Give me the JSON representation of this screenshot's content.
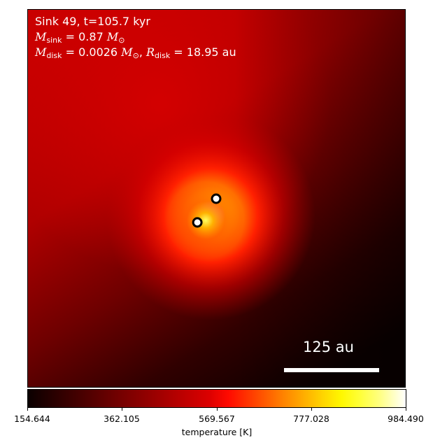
{
  "annotation": {
    "line1": "Sink 49, t=105.7 kyr",
    "m_sink_symbol": "M",
    "m_sink_sub": "sink",
    "m_sink_value": "= 0.87",
    "m_sink_unit": "M",
    "sun_sub": "⊙",
    "m_disk_symbol": "M",
    "m_disk_sub": "disk",
    "m_disk_value": "= 0.0026",
    "m_disk_unit": "M",
    "r_disk_symbol": "R",
    "r_disk_sub": "disk",
    "r_disk_value": "= 18.95",
    "r_disk_unit": "au"
  },
  "scale_bar": {
    "label": "125 au"
  },
  "colorbar": {
    "colormap": "hot",
    "min": 154.644,
    "max": 984.49,
    "ticks": [
      "154.644",
      "362.105",
      "569.567",
      "777.028",
      "984.490"
    ],
    "label": "temperature [K]"
  },
  "sinks": [
    {
      "marker": "white-ring-black-edge"
    },
    {
      "marker": "white-ring-black-edge"
    }
  ]
}
